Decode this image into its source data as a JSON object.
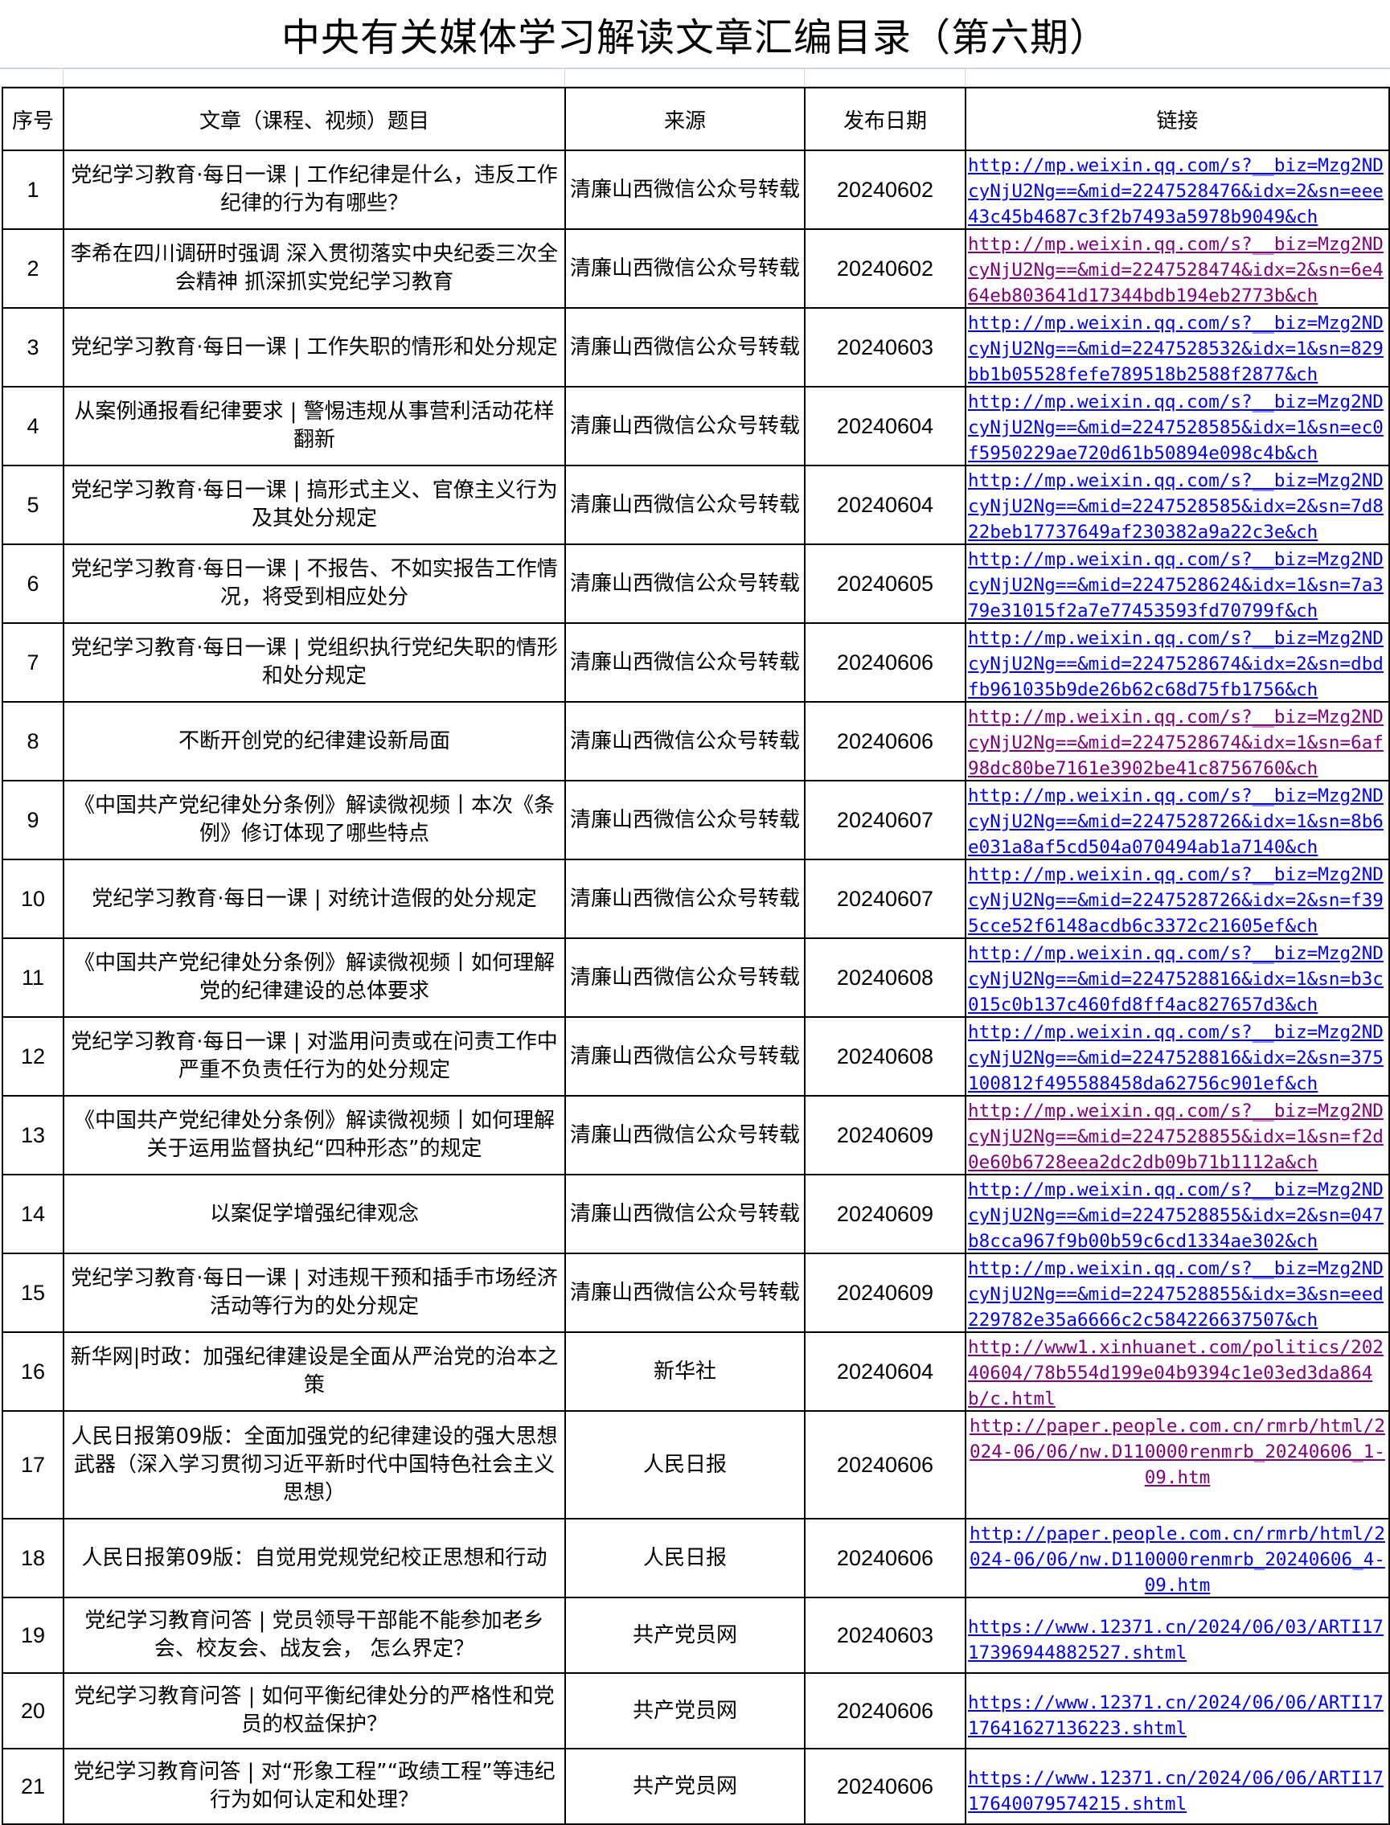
{
  "title": "中央有关媒体学习解读文章汇编目录（第六期）",
  "headers": {
    "index": "序号",
    "title": "文章（课程、视频）题目",
    "source": "来源",
    "date": "发布日期",
    "link": "链接"
  },
  "colors": {
    "link": "#0000ff",
    "visited_link": "#800080"
  },
  "rows": [
    {
      "index": "1",
      "title": "党纪学习教育·每日一课 | 工作纪律是什么，违反工作纪律的行为有哪些？",
      "source": "清廉山西微信公众号转载",
      "date": "20240602",
      "link": "http://mp.weixin.qq.com/s?__biz=Mzg2NDcyNjU2Ng==&mid=2247528476&idx=2&sn=eee43c45b4687c3f2b7493a5978b9049&ch",
      "visited": false
    },
    {
      "index": "2",
      "title": "李希在四川调研时强调 深入贯彻落实中央纪委三次全会精神 抓深抓实党纪学习教育",
      "source": "清廉山西微信公众号转载",
      "date": "20240602",
      "link": "http://mp.weixin.qq.com/s?__biz=Mzg2NDcyNjU2Ng==&mid=2247528474&idx=2&sn=6e464eb803641d17344bdb194eb2773b&ch",
      "visited": true
    },
    {
      "index": "3",
      "title": "党纪学习教育·每日一课 | 工作失职的情形和处分规定",
      "source": "清廉山西微信公众号转载",
      "date": "20240603",
      "link": "http://mp.weixin.qq.com/s?__biz=Mzg2NDcyNjU2Ng==&mid=2247528532&idx=1&sn=829bb1b05528fefe789518b2588f2877&ch",
      "visited": false
    },
    {
      "index": "4",
      "title": "从案例通报看纪律要求 | 警惕违规从事营利活动花样翻新",
      "source": "清廉山西微信公众号转载",
      "date": "20240604",
      "link": "http://mp.weixin.qq.com/s?__biz=Mzg2NDcyNjU2Ng==&mid=2247528585&idx=1&sn=ec0f5950229ae720d61b50894e098c4b&ch",
      "visited": false
    },
    {
      "index": "5",
      "title": "党纪学习教育·每日一课 | 搞形式主义、官僚主义行为及其处分规定",
      "source": "清廉山西微信公众号转载",
      "date": "20240604",
      "link": "http://mp.weixin.qq.com/s?__biz=Mzg2NDcyNjU2Ng==&mid=2247528585&idx=2&sn=7d822beb17737649af230382a9a22c3e&ch",
      "visited": false
    },
    {
      "index": "6",
      "title": "党纪学习教育·每日一课 | 不报告、不如实报告工作情况，将受到相应处分",
      "source": "清廉山西微信公众号转载",
      "date": "20240605",
      "link": "http://mp.weixin.qq.com/s?__biz=Mzg2NDcyNjU2Ng==&mid=2247528624&idx=1&sn=7a379e31015f2a7e77453593fd70799f&ch",
      "visited": false
    },
    {
      "index": "7",
      "title": "党纪学习教育·每日一课 | 党组织执行党纪失职的情形和处分规定",
      "source": "清廉山西微信公众号转载",
      "date": "20240606",
      "link": "http://mp.weixin.qq.com/s?__biz=Mzg2NDcyNjU2Ng==&mid=2247528674&idx=2&sn=dbdfb961035b9de26b62c68d75fb1756&ch",
      "visited": false
    },
    {
      "index": "8",
      "title": "不断开创党的纪律建设新局面",
      "source": "清廉山西微信公众号转载",
      "date": "20240606",
      "link": "http://mp.weixin.qq.com/s?__biz=Mzg2NDcyNjU2Ng==&mid=2247528674&idx=1&sn=6af98dc80be7161e3902be41c8756760&ch",
      "visited": true
    },
    {
      "index": "9",
      "title": "《中国共产党纪律处分条例》解读微视频丨本次《条例》修订体现了哪些特点",
      "source": "清廉山西微信公众号转载",
      "date": "20240607",
      "link": "http://mp.weixin.qq.com/s?__biz=Mzg2NDcyNjU2Ng==&mid=2247528726&idx=1&sn=8b6e031a8af5cd504a070494ab1a7140&ch",
      "visited": false
    },
    {
      "index": "10",
      "title": "党纪学习教育·每日一课 | 对统计造假的处分规定",
      "source": "清廉山西微信公众号转载",
      "date": "20240607",
      "link": "http://mp.weixin.qq.com/s?__biz=Mzg2NDcyNjU2Ng==&mid=2247528726&idx=2&sn=f395cce52f6148acdb6c3372c21605ef&ch",
      "visited": false
    },
    {
      "index": "11",
      "title": "《中国共产党纪律处分条例》解读微视频丨如何理解党的纪律建设的总体要求",
      "source": "清廉山西微信公众号转载",
      "date": "20240608",
      "link": "http://mp.weixin.qq.com/s?__biz=Mzg2NDcyNjU2Ng==&mid=2247528816&idx=1&sn=b3c015c0b137c460fd8ff4ac827657d3&ch",
      "visited": false
    },
    {
      "index": "12",
      "title": "党纪学习教育·每日一课 | 对滥用问责或在问责工作中严重不负责任行为的处分规定",
      "source": "清廉山西微信公众号转载",
      "date": "20240608",
      "link": "http://mp.weixin.qq.com/s?__biz=Mzg2NDcyNjU2Ng==&mid=2247528816&idx=2&sn=375100812f495588458da62756c901ef&ch",
      "visited": false
    },
    {
      "index": "13",
      "title": "《中国共产党纪律处分条例》解读微视频丨如何理解关于运用监督执纪“四种形态”的规定",
      "source": "清廉山西微信公众号转载",
      "date": "20240609",
      "link": "http://mp.weixin.qq.com/s?__biz=Mzg2NDcyNjU2Ng==&mid=2247528855&idx=1&sn=f2d0e60b6728eea2dc2db09b71b1112a&ch",
      "visited": true
    },
    {
      "index": "14",
      "title": "以案促学增强纪律观念",
      "source": "清廉山西微信公众号转载",
      "date": "20240609",
      "link": "http://mp.weixin.qq.com/s?__biz=Mzg2NDcyNjU2Ng==&mid=2247528855&idx=2&sn=047b8cca967f9b00b59c6cd1334ae302&ch",
      "visited": false
    },
    {
      "index": "15",
      "title": "党纪学习教育·每日一课 | 对违规干预和插手市场经济活动等行为的处分规定",
      "source": "清廉山西微信公众号转载",
      "date": "20240609",
      "link": "http://mp.weixin.qq.com/s?__biz=Mzg2NDcyNjU2Ng==&mid=2247528855&idx=3&sn=eed229782e35a6666c2c584226637507&ch",
      "visited": false
    },
    {
      "index": "16",
      "title": "新华网|时政：加强纪律建设是全面从严治党的治本之策",
      "source": "新华社",
      "date": "20240604",
      "link": "http://www1.xinhuanet.com/politics/20240604/78b554d199e04b9394c1e03ed3da864b/c.html",
      "visited": true
    },
    {
      "index": "17",
      "title": "人民日报第09版：全面加强党的纪律建设的强大思想武器（深入学习贯彻习近平新时代中国特色社会主义思想）",
      "source": "人民日报",
      "date": "20240606",
      "link": "http://paper.people.com.cn/rmrb/html/2024-06/06/nw.D110000renmrb_20240606_1-09.htm",
      "visited": true
    },
    {
      "index": "18",
      "title": "人民日报第09版：自觉用党规党纪校正思想和行动",
      "source": "人民日报",
      "date": "20240606",
      "link": "http://paper.people.com.cn/rmrb/html/2024-06/06/nw.D110000renmrb_20240606_4-09.htm",
      "visited": false
    },
    {
      "index": "19",
      "title": "党纪学习教育问答 | 党员领导干部能不能参加老乡会、校友会、战友会， 怎么界定？",
      "source": "共产党员网",
      "date": "20240603",
      "link": "https://www.12371.cn/2024/06/03/ARTI1717396944882527.shtml",
      "visited": false
    },
    {
      "index": "20",
      "title": "党纪学习教育问答 | 如何平衡纪律处分的严格性和党员的权益保护？",
      "source": "共产党员网",
      "date": "20240606",
      "link": "https://www.12371.cn/2024/06/06/ARTI1717641627136223.shtml",
      "visited": false
    },
    {
      "index": "21",
      "title": "党纪学习教育问答 | 对“形象工程”“政绩工程”等违纪行为如何认定和处理？",
      "source": "共产党员网",
      "date": "20240606",
      "link": "https://www.12371.cn/2024/06/06/ARTI1717640079574215.shtml",
      "visited": false
    }
  ]
}
